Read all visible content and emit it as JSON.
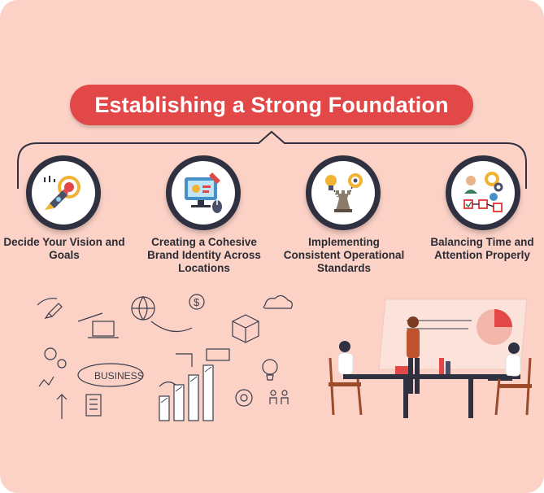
{
  "title": "Establishing a Strong Foundation",
  "steps": [
    {
      "label": "Decide Your Vision and Goals",
      "icon": "rocket-target-icon"
    },
    {
      "label": "Creating a Cohesive Brand Identity Across Locations",
      "icon": "monitor-design-icon"
    },
    {
      "label": "Implementing Consistent Operational Standards",
      "icon": "chess-rook-strategy-icon"
    },
    {
      "label": "Balancing Time and Attention Properly",
      "icon": "workflow-manager-icon"
    }
  ],
  "illustrations": {
    "left_word": "BUSINESS",
    "left_icons": [
      "rocket-icon",
      "laptop-icon",
      "dollar-icon",
      "lightbulb-icon",
      "bar-chart-icon",
      "gears-icon",
      "cloud-icon",
      "people-icon"
    ],
    "right_icons": [
      "meeting-table-icon",
      "pie-chart-board-icon"
    ]
  },
  "colors": {
    "background": "#fcd2c7",
    "accent": "#e34848",
    "circle_ring": "#2f3140",
    "text": "#2b2b33"
  }
}
